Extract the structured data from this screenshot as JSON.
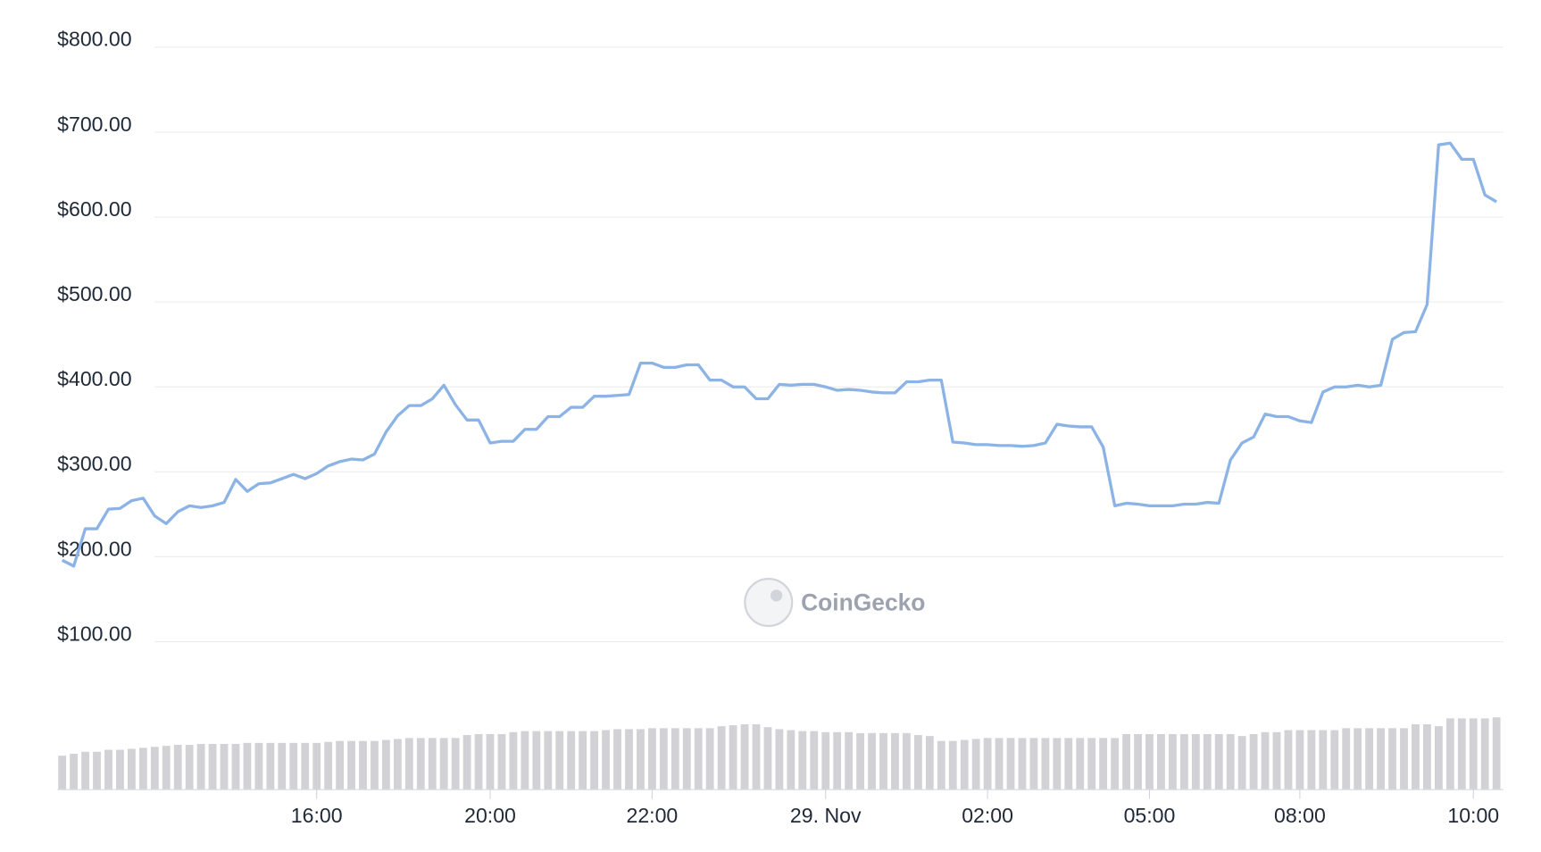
{
  "chart_data": {
    "type": "line",
    "watermark": "CoinGecko",
    "color": "#8bb3e6",
    "volume_color": "#d1d1d6",
    "grid": true,
    "ylim": [
      100,
      800
    ],
    "yticks": [
      {
        "value": 100,
        "label": "$100.00"
      },
      {
        "value": 200,
        "label": "$200.00"
      },
      {
        "value": 300,
        "label": "$300.00"
      },
      {
        "value": 400,
        "label": "$400.00"
      },
      {
        "value": 500,
        "label": "$500.00"
      },
      {
        "value": 600,
        "label": "$600.00"
      },
      {
        "value": 700,
        "label": "$700.00"
      },
      {
        "value": 800,
        "label": "$800.00"
      }
    ],
    "categories": [
      null,
      null,
      null,
      null,
      null,
      null,
      null,
      null,
      null,
      null,
      null,
      null,
      null,
      null,
      null,
      null,
      null,
      null,
      null,
      null,
      null,
      null,
      "16:00",
      null,
      null,
      null,
      null,
      null,
      null,
      null,
      null,
      null,
      null,
      null,
      null,
      null,
      null,
      "20:00",
      null,
      null,
      null,
      null,
      null,
      null,
      null,
      null,
      null,
      null,
      null,
      null,
      null,
      "22:00",
      null,
      null,
      null,
      null,
      null,
      null,
      null,
      null,
      null,
      null,
      null,
      null,
      null,
      null,
      "29. Nov",
      null,
      null,
      null,
      null,
      null,
      null,
      null,
      null,
      null,
      null,
      null,
      null,
      null,
      "02:00",
      null,
      null,
      null,
      null,
      null,
      null,
      null,
      null,
      null,
      null,
      null,
      null,
      null,
      "05:00",
      null,
      null,
      null,
      null,
      null,
      null,
      null,
      null,
      null,
      null,
      null,
      null,
      "08:00",
      null,
      null,
      null,
      null,
      null,
      null,
      null,
      null,
      null,
      null,
      null,
      null,
      null,
      null,
      "10:00",
      null,
      null
    ],
    "values": [
      196,
      189,
      233,
      233,
      256,
      257,
      266,
      269,
      248,
      239,
      253,
      260,
      258,
      260,
      264,
      291,
      277,
      286,
      287,
      292,
      297,
      292,
      298,
      307,
      312,
      315,
      314,
      321,
      347,
      366,
      378,
      378,
      386,
      402,
      379,
      361,
      361,
      334,
      336,
      336,
      350,
      350,
      365,
      365,
      376,
      376,
      389,
      389,
      390,
      391,
      428,
      428,
      423,
      423,
      426,
      426,
      408,
      408,
      400,
      400,
      386,
      386,
      403,
      402,
      403,
      403,
      400,
      396,
      397,
      396,
      394,
      393,
      393,
      406,
      406,
      408,
      408,
      335,
      334,
      332,
      332,
      331,
      331,
      330,
      331,
      334,
      356,
      354,
      353,
      353,
      329,
      260,
      263,
      262,
      260,
      260,
      260,
      262,
      262,
      264,
      263,
      314,
      334,
      341,
      368,
      365,
      365,
      360,
      358,
      394,
      400,
      400,
      402,
      400,
      402,
      456,
      464,
      465,
      497,
      685,
      687,
      668,
      668,
      626,
      618
    ],
    "volume": [
      34,
      36,
      38,
      38,
      40,
      40,
      41,
      42,
      43,
      44,
      45,
      45,
      46,
      46,
      46,
      46,
      47,
      47,
      47,
      47,
      47,
      47,
      47,
      48,
      49,
      49,
      49,
      49,
      50,
      51,
      52,
      52,
      52,
      52,
      52,
      55,
      56,
      56,
      56,
      58,
      59,
      59,
      59,
      59,
      59,
      59,
      59,
      60,
      61,
      61,
      61,
      62,
      62,
      62,
      62,
      62,
      62,
      64,
      65,
      66,
      66,
      63,
      61,
      60,
      59,
      59,
      58,
      58,
      58,
      57,
      57,
      57,
      57,
      57,
      55,
      54,
      49,
      49,
      50,
      51,
      52,
      52,
      52,
      52,
      52,
      52,
      52,
      52,
      52,
      52,
      52,
      52,
      56,
      56,
      56,
      56,
      56,
      56,
      56,
      56,
      56,
      56,
      54,
      56,
      58,
      58,
      60,
      60,
      60,
      60,
      60,
      62,
      62,
      62,
      62,
      62,
      62,
      66,
      66,
      64,
      72,
      72,
      72,
      72,
      73
    ]
  }
}
